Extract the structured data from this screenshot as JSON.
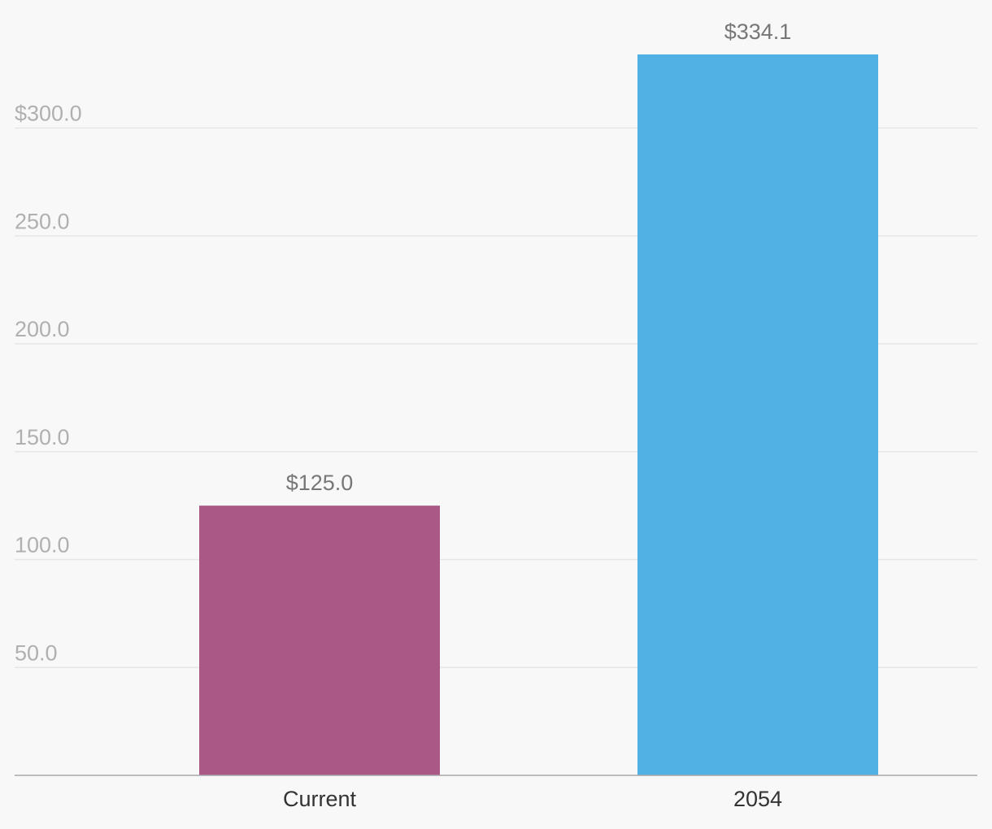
{
  "chart_data": {
    "type": "bar",
    "title": "",
    "xlabel": "",
    "ylabel": "",
    "categories": [
      "Current",
      "2054"
    ],
    "values": [
      125.0,
      334.1
    ],
    "data_labels": [
      "$125.0",
      "$334.1"
    ],
    "bar_colors": [
      "#aa5886",
      "#51b1e4"
    ],
    "ylim": [
      0,
      350
    ],
    "y_ticks": [
      50,
      100,
      150,
      200,
      250,
      300
    ],
    "y_tick_labels": [
      "50.0",
      "100.0",
      "150.0",
      "200.0",
      "250.0",
      "$300.0"
    ],
    "grid": true,
    "legend": "none"
  }
}
